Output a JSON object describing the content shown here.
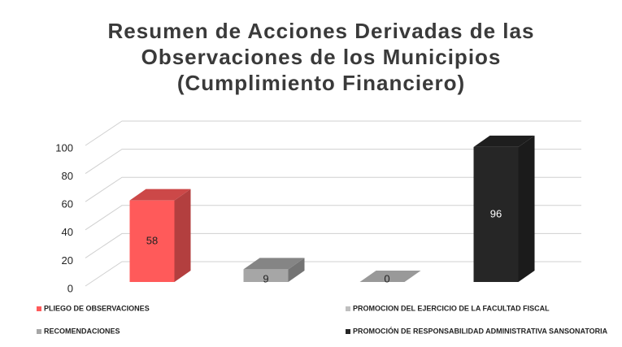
{
  "chart_data": {
    "type": "bar3d",
    "title": [
      "Resumen de Acciones Derivadas de las",
      "Observaciones de los Municipios",
      "(Cumplimiento Financiero)"
    ],
    "categories": [
      null
    ],
    "series": [
      {
        "name": "PLIEGO DE OBSERVACIONES",
        "color": "#ff5a5a",
        "values": [
          58
        ]
      },
      {
        "name": "RECOMENDACIONES",
        "color": "#a6a6a6",
        "values": [
          9
        ]
      },
      {
        "name": "PROMOCION DEL EJERCICIO DE LA FACULTAD FISCAL",
        "color": "#bfbfbf",
        "values": [
          0
        ]
      },
      {
        "name": "PROMOCIÓN DE RESPONSABILIDAD ADMINISTRATIVA SANSONATORIA",
        "color": "#262626",
        "values": [
          96
        ]
      }
    ],
    "ylim": [
      0,
      100
    ],
    "yticks": [
      0,
      20,
      40,
      60,
      80,
      100
    ],
    "grid": true
  }
}
